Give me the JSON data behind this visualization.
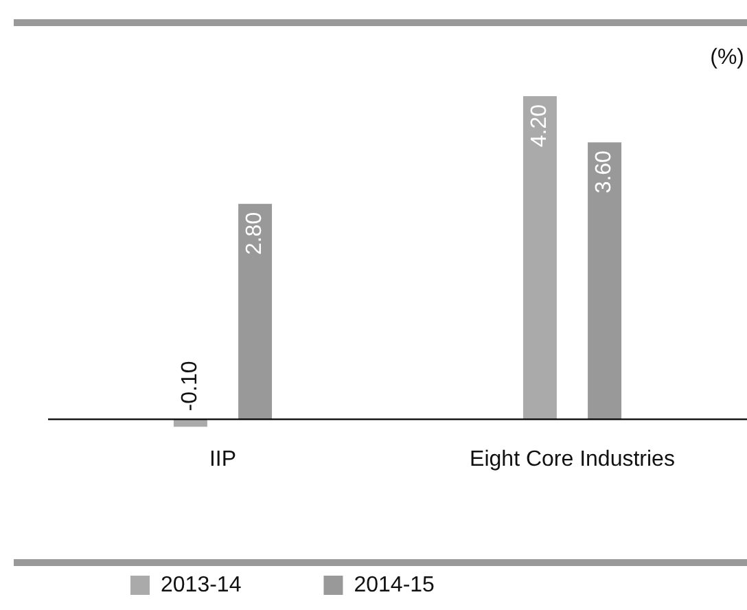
{
  "chart_data": {
    "type": "bar",
    "ylabel": "(%)",
    "categories": [
      "IIP",
      "Eight Core Industries"
    ],
    "series": [
      {
        "name": "2013-14",
        "color": "#aaaaaa",
        "values": [
          -0.1,
          4.2
        ],
        "value_labels": [
          "-0.10",
          "4.20"
        ]
      },
      {
        "name": "2014-15",
        "color": "#999999",
        "values": [
          2.8,
          3.6
        ],
        "value_labels": [
          "2.80",
          "3.60"
        ]
      }
    ],
    "legend": "bottom left",
    "grid": false
  }
}
